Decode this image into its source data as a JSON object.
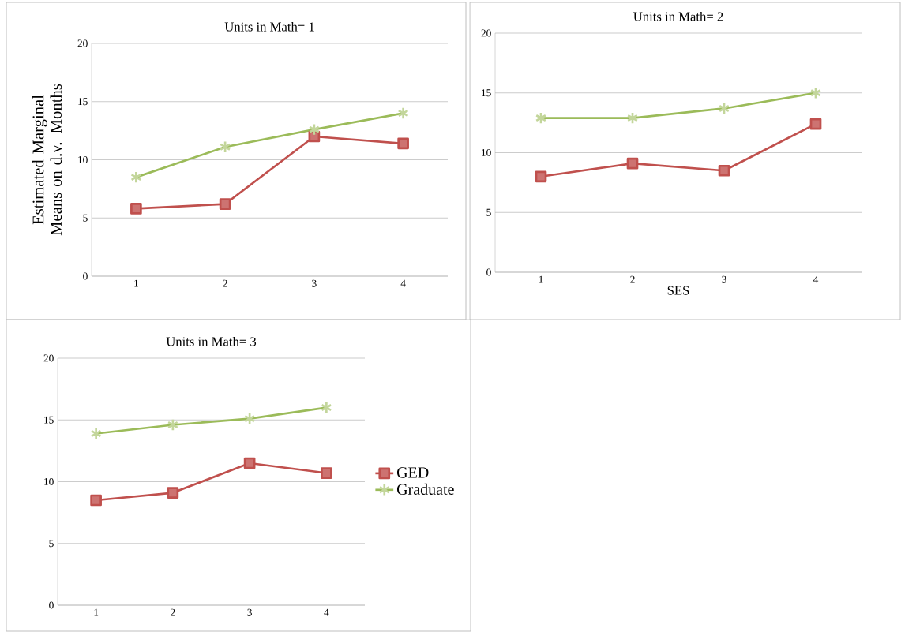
{
  "chart_data": [
    {
      "type": "line",
      "title": "Units in Math= 1",
      "ylabel": "Estimated Marginal Means on  d.v. Months",
      "categories": [
        "1",
        "2",
        "3",
        "4"
      ],
      "ylim": [
        0,
        20
      ],
      "yticks": [
        0,
        5,
        10,
        15,
        20
      ],
      "grid": "y",
      "series": [
        {
          "color": "#c0504d",
          "marker": "square",
          "values": [
            5.8,
            6.2,
            12.0,
            11.4
          ]
        },
        {
          "color": "#9bbb59",
          "marker": "cross",
          "values": [
            8.5,
            11.1,
            12.6,
            14.0
          ]
        }
      ]
    },
    {
      "type": "line",
      "title": "Units in Math= 2",
      "xlabel": "SES",
      "categories": [
        "1",
        "2",
        "3",
        "4"
      ],
      "ylim": [
        0,
        20
      ],
      "yticks": [
        0,
        5,
        10,
        15,
        20
      ],
      "grid": "y",
      "series": [
        {
          "color": "#c0504d",
          "marker": "square",
          "values": [
            8.0,
            9.1,
            8.5,
            12.4
          ]
        },
        {
          "color": "#9bbb59",
          "marker": "cross",
          "values": [
            12.9,
            12.9,
            13.7,
            15.0
          ]
        }
      ]
    },
    {
      "type": "line",
      "title": "Units in Math= 3",
      "categories": [
        "1",
        "2",
        "3",
        "4"
      ],
      "ylim": [
        0,
        20
      ],
      "yticks": [
        0,
        5,
        10,
        15,
        20
      ],
      "grid": "y",
      "legend": "right",
      "series": [
        {
          "name": "GED",
          "color": "#c0504d",
          "marker": "square",
          "values": [
            8.5,
            9.1,
            11.5,
            10.7
          ]
        },
        {
          "name": "Graduate",
          "color": "#9bbb59",
          "marker": "cross",
          "values": [
            13.9,
            14.6,
            15.1,
            16.0
          ]
        }
      ]
    }
  ]
}
